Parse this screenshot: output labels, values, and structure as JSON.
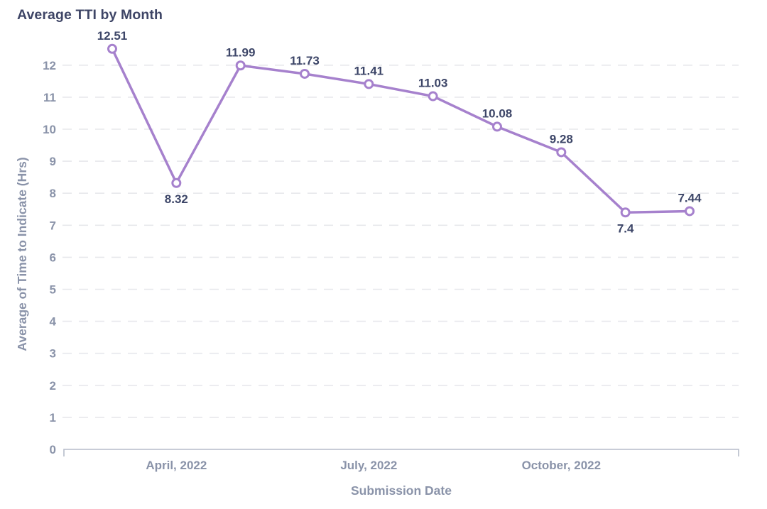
{
  "header": {
    "title": "Average TTI by Month"
  },
  "chart_data": {
    "type": "line",
    "title": "Average TTI by Month",
    "xlabel": "Submission Date",
    "ylabel": "Average of Time to Indicate (Hrs)",
    "values": [
      12.51,
      8.32,
      11.99,
      11.73,
      11.41,
      11.03,
      10.08,
      9.28,
      7.4,
      7.44
    ],
    "data_labels": [
      "12.51",
      "8.32",
      "11.99",
      "11.73",
      "11.41",
      "11.03",
      "10.08",
      "9.28",
      "7.4",
      "7.44"
    ],
    "label_position": [
      "above",
      "below",
      "above",
      "above",
      "above",
      "above",
      "above",
      "above",
      "below",
      "above"
    ],
    "x_tick_labels": [
      {
        "label": "April, 2022",
        "point_index": 1
      },
      {
        "label": "July, 2022",
        "point_index": 4
      },
      {
        "label": "October, 2022",
        "point_index": 7
      }
    ],
    "y_ticks": [
      0,
      1,
      2,
      3,
      4,
      5,
      6,
      7,
      8,
      9,
      10,
      11,
      12
    ],
    "ylim": [
      0,
      13
    ],
    "grid": "horizontal-dashed",
    "legend": "none",
    "colors": {
      "line": "#a681cd",
      "marker_fill": "#ffffff",
      "marker_stroke": "#a681cd",
      "data_label": "#3d4668",
      "title": "#3e4566",
      "axis_text": "#8a93a9",
      "grid_line": "#e7e8ec",
      "axis_line": "#b6bcca",
      "background": "#ffffff"
    }
  }
}
